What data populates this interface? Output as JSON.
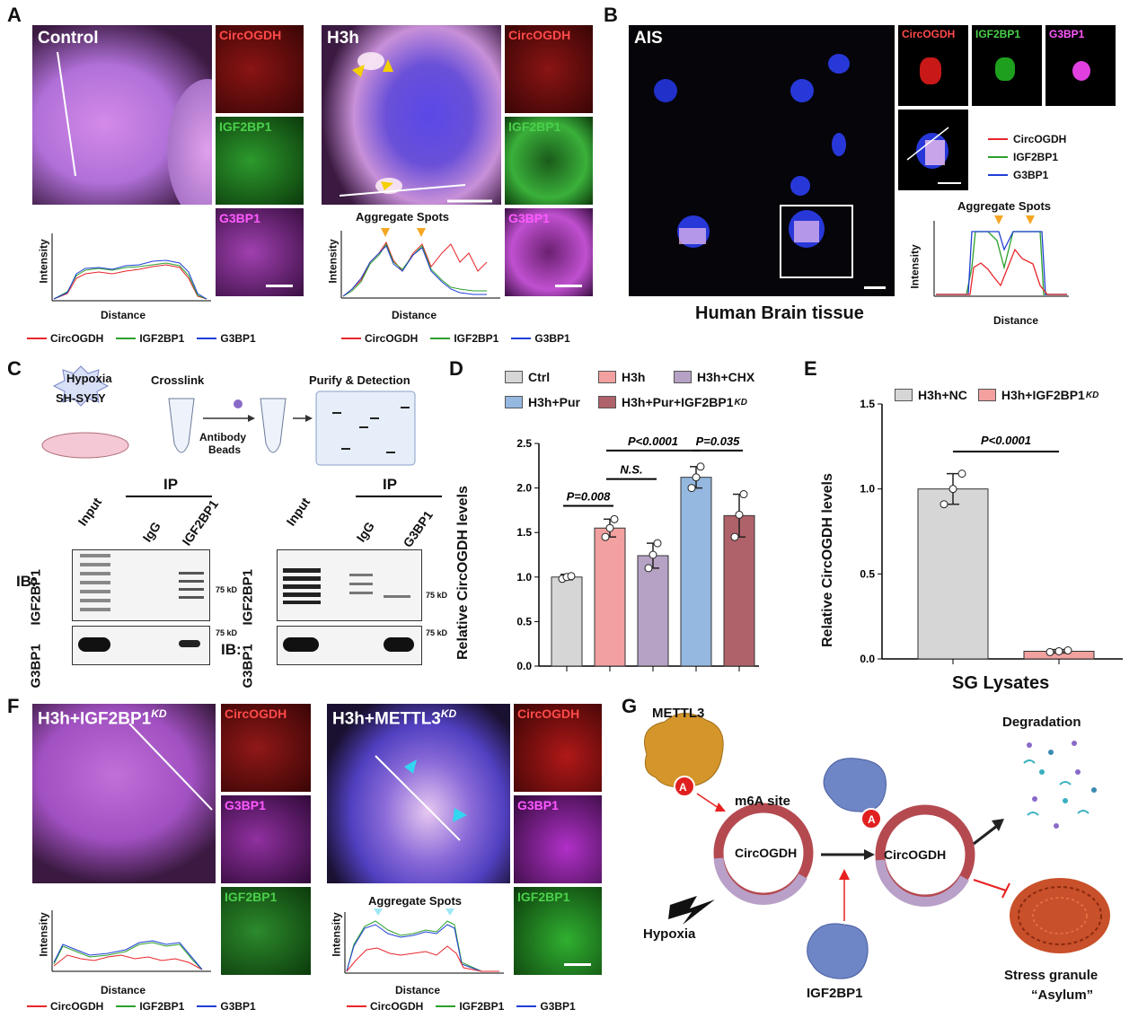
{
  "panel_letters": {
    "a": "A",
    "b": "B",
    "c": "C",
    "d": "D",
    "e": "E",
    "f": "F",
    "g": "G"
  },
  "panelA": {
    "control_title": "Control",
    "h3h_title": "H3h",
    "channels": [
      "CircOGDH",
      "IGF2BP1",
      "G3BP1"
    ],
    "aggregate_spots": "Aggregate Spots",
    "xlabel": "Distance",
    "ylabel": "Intensity",
    "legend": [
      "CircOGDH",
      "IGF2BP1",
      "G3BP1"
    ]
  },
  "panelB": {
    "title": "AIS",
    "caption": "Human Brain tissue",
    "channels": [
      "CircOGDH",
      "IGF2BP1",
      "G3BP1"
    ],
    "legend": [
      "CircOGDH",
      "IGF2BP1",
      "G3BP1"
    ],
    "aggregate_spots": "Aggregate Spots",
    "xlabel": "Distance",
    "ylabel": "Intensity"
  },
  "panelC": {
    "hypoxia": "Hypoxia",
    "cell": "SH-SY5Y",
    "crosslink": "Crosslink",
    "antibody": "Antibody",
    "beads": "Beads",
    "purify": "Purify & Detection",
    "ip": "IP",
    "ib": "IB:",
    "left_lanes": [
      "Input",
      "IgG",
      "IGF2BP1"
    ],
    "right_lanes": [
      "Input",
      "IgG",
      "G3BP1"
    ],
    "row_labels": [
      "IGF2BP1",
      "G3BP1"
    ],
    "mw": "75 kD"
  },
  "panelD": {
    "legend": [
      "Ctrl",
      "H3h",
      "H3h+CHX",
      "H3h+Pur",
      "H3h+Pur+IGF2BP1"
    ],
    "legend_sup": "KD",
    "ylabel": "Relative CircOGDH levels",
    "p1": "P=0.008",
    "p2": "N.S.",
    "p3": "P<0.0001",
    "p4": "P=0.035"
  },
  "panelE": {
    "legend": [
      "H3h+NC",
      "H3h+IGF2BP1"
    ],
    "legend_sup": "KD",
    "ylabel": "Relative CircOGDH levels",
    "xlabel": "SG Lysates",
    "p": "P<0.0001"
  },
  "panelF": {
    "left_title": "H3h+IGF2BP1",
    "right_title": "H3h+METTL3",
    "sup": "KD",
    "channels": [
      "CircOGDH",
      "G3BP1",
      "IGF2BP1"
    ],
    "aggregate_spots": "Aggregate Spots",
    "xlabel": "Distance",
    "ylabel": "Intensity",
    "legend": [
      "CircOGDH",
      "IGF2BP1",
      "G3BP1"
    ]
  },
  "panelG": {
    "mettl3": "METTL3",
    "m6a": "m6A site",
    "circ": "CircOGDH",
    "circ2": "CircOGDH",
    "hypoxia": "Hypoxia",
    "igf": "IGF2BP1",
    "degradation": "Degradation",
    "sg1": "Stress granule",
    "sg2": "“Asylum”",
    "a": "A"
  },
  "colors": {
    "circ": "#e8262b",
    "igf": "#2ca02c",
    "g3bp": "#1f3fd6",
    "arrow": "#f5a623",
    "cyan": "#33d6f0"
  },
  "chart_data": [
    {
      "type": "bar",
      "title": "",
      "categories": [
        "Ctrl",
        "H3h",
        "H3h+CHX",
        "H3h+Pur",
        "H3h+Pur+IGF2BP1KD"
      ],
      "values": [
        1.0,
        1.55,
        1.24,
        2.12,
        1.69
      ],
      "errors": [
        0.03,
        0.1,
        0.14,
        0.12,
        0.24
      ],
      "points": [
        [
          0.98,
          1.0,
          1.01
        ],
        [
          1.45,
          1.55,
          1.65
        ],
        [
          1.1,
          1.25,
          1.38
        ],
        [
          2.0,
          2.12,
          2.24
        ],
        [
          1.45,
          1.7,
          1.93
        ]
      ],
      "colors": [
        "#d6d6d6",
        "#f2a0a0",
        "#b6a2c4",
        "#94b8e0",
        "#b0626a"
      ],
      "ylabel": "Relative CircOGDH levels",
      "ylim": [
        0,
        2.5
      ],
      "yticks": [
        0.0,
        0.5,
        1.0,
        1.5,
        2.0,
        2.5
      ]
    },
    {
      "type": "bar",
      "title": "",
      "categories": [
        "H3h+NC",
        "H3h+IGF2BP1KD"
      ],
      "values": [
        1.0,
        0.045
      ],
      "errors": [
        0.09,
        0.01
      ],
      "points": [
        [
          0.91,
          1.0,
          1.09
        ],
        [
          0.04,
          0.045,
          0.05
        ]
      ],
      "colors": [
        "#d6d6d6",
        "#f2a0a0"
      ],
      "ylabel": "Relative CircOGDH levels",
      "xlabel": "SG Lysates",
      "ylim": [
        0,
        1.5
      ],
      "yticks": [
        0.0,
        0.5,
        1.0,
        1.5
      ]
    }
  ]
}
